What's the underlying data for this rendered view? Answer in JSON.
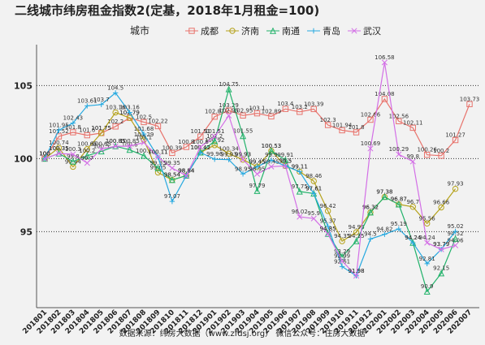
{
  "chart_data": {
    "type": "line",
    "title": "二线城市纬房租金指数2(定基，2018年1月租金=100)",
    "legend_title": "城市",
    "source": "数据来源：纬房大数据（www.zfdsj.org）    微信公众号：住房大数据",
    "categories": [
      "201801",
      "201802",
      "201803",
      "201804",
      "201805",
      "201806",
      "201807",
      "201808",
      "201809",
      "201810",
      "201811",
      "201812",
      "201901",
      "201902",
      "201903",
      "201904",
      "201905",
      "201906",
      "201907",
      "201908",
      "201909",
      "201910",
      "201911",
      "201912",
      "202001",
      "202002",
      "202003",
      "202004",
      "202005",
      "202006",
      "202007"
    ],
    "series": [
      {
        "name": "成都",
        "color": "#e8736c",
        "values": [
          100,
          101.52,
          101.8,
          101.6,
          101.75,
          102.2,
          102.79,
          102.5,
          102.22,
          100.39,
          100.8,
          101.51,
          102.87,
          103.29,
          102.95,
          103.1,
          102.89,
          103.4,
          103.2,
          103.39,
          102.3,
          101.94,
          101.8,
          102.66,
          104.08,
          102.56,
          102.11,
          100.26,
          100.2,
          101.27,
          103.73
        ]
      },
      {
        "name": "济南",
        "color": "#b5a21b",
        "values": [
          100,
          100.74,
          99.44,
          100.65,
          101.75,
          103.16,
          102.79,
          101.29,
          99.05,
          98.54,
          98.84,
          100.42,
          100.92,
          100.34,
          99.93,
          99.45,
          100.53,
          99.5,
          99.11,
          98.46,
          96.42,
          94.35,
          94.96,
          96.32,
          97.38,
          96.87,
          96.7,
          95.56,
          96.66,
          97.93,
          null
        ]
      },
      {
        "name": "南通",
        "color": "#21b26a",
        "values": [
          100,
          100.35,
          99.8,
          100.2,
          100.5,
          100.85,
          100.6,
          100.2,
          99.35,
          98.54,
          98.84,
          100.42,
          101.2,
          104.75,
          101.55,
          97.79,
          100.53,
          99.91,
          97.75,
          97.61,
          94.85,
          93.29,
          94.35,
          96.32,
          97.38,
          96.87,
          94.24,
          90.9,
          92.15,
          94.52,
          null
        ]
      },
      {
        "name": "青岛",
        "color": "#26a9e0",
        "values": [
          100,
          101.95,
          102.43,
          103.61,
          103.7,
          104.5,
          103.16,
          101.68,
          100.11,
          97.07,
          98.84,
          100.42,
          99.96,
          99.93,
          98.95,
          99.45,
          99.9,
          99.5,
          99.11,
          97.61,
          95.37,
          92.61,
          91.98,
          94.5,
          94.82,
          95.19,
          94.24,
          92.81,
          93.79,
          95.02,
          null
        ]
      },
      {
        "name": "武汉",
        "color": "#d36fe6",
        "values": [
          100,
          100.35,
          100.3,
          99.7,
          100.65,
          100.85,
          100.85,
          101.1,
          100.11,
          99.35,
          98.84,
          100.8,
          101.51,
          102.95,
          99.93,
          98.95,
          99.45,
          99.5,
          96.02,
          95.9,
          94.85,
          92.99,
          91.98,
          100.69,
          106.58,
          100.29,
          99.8,
          94.24,
          93.79,
          94.06,
          null
        ]
      }
    ],
    "ylim": [
      89.8,
      107.8
    ],
    "yticks": [
      95,
      100,
      105
    ],
    "grid": true
  }
}
